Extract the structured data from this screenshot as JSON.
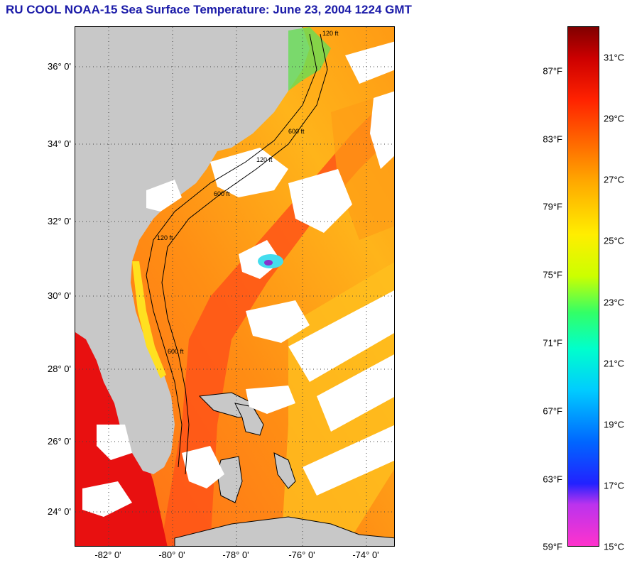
{
  "title": "RU COOL  NOAA-15  Sea Surface Temperature:  June 23, 2004 1224 GMT",
  "map": {
    "lat_labels": [
      "36° 0'",
      "34° 0'",
      "32° 0'",
      "30° 0'",
      "28° 0'",
      "26° 0'",
      "24° 0'"
    ],
    "lon_labels": [
      "-82° 0'",
      "-80° 0'",
      "-78° 0'",
      "-76° 0'",
      "-74° 0'"
    ],
    "isobath_labels": [
      "120 ft",
      "600 ft",
      "120 ft",
      "600 ft",
      "120 ft",
      "600 ft"
    ],
    "colors": {
      "land": "#c8c8c8",
      "cloud": "#ffffff",
      "warm": "#ff5a1a",
      "mid": "#ff9a14",
      "cool": "#ffd21e",
      "hot": "#e81010"
    }
  },
  "colorbar": {
    "fahrenheit": [
      "87°F",
      "83°F",
      "79°F",
      "75°F",
      "71°F",
      "67°F",
      "63°F",
      "59°F"
    ],
    "celsius": [
      "31°C",
      "29°C",
      "27°C",
      "25°C",
      "23°C",
      "21°C",
      "19°C",
      "17°C",
      "15°C"
    ]
  }
}
